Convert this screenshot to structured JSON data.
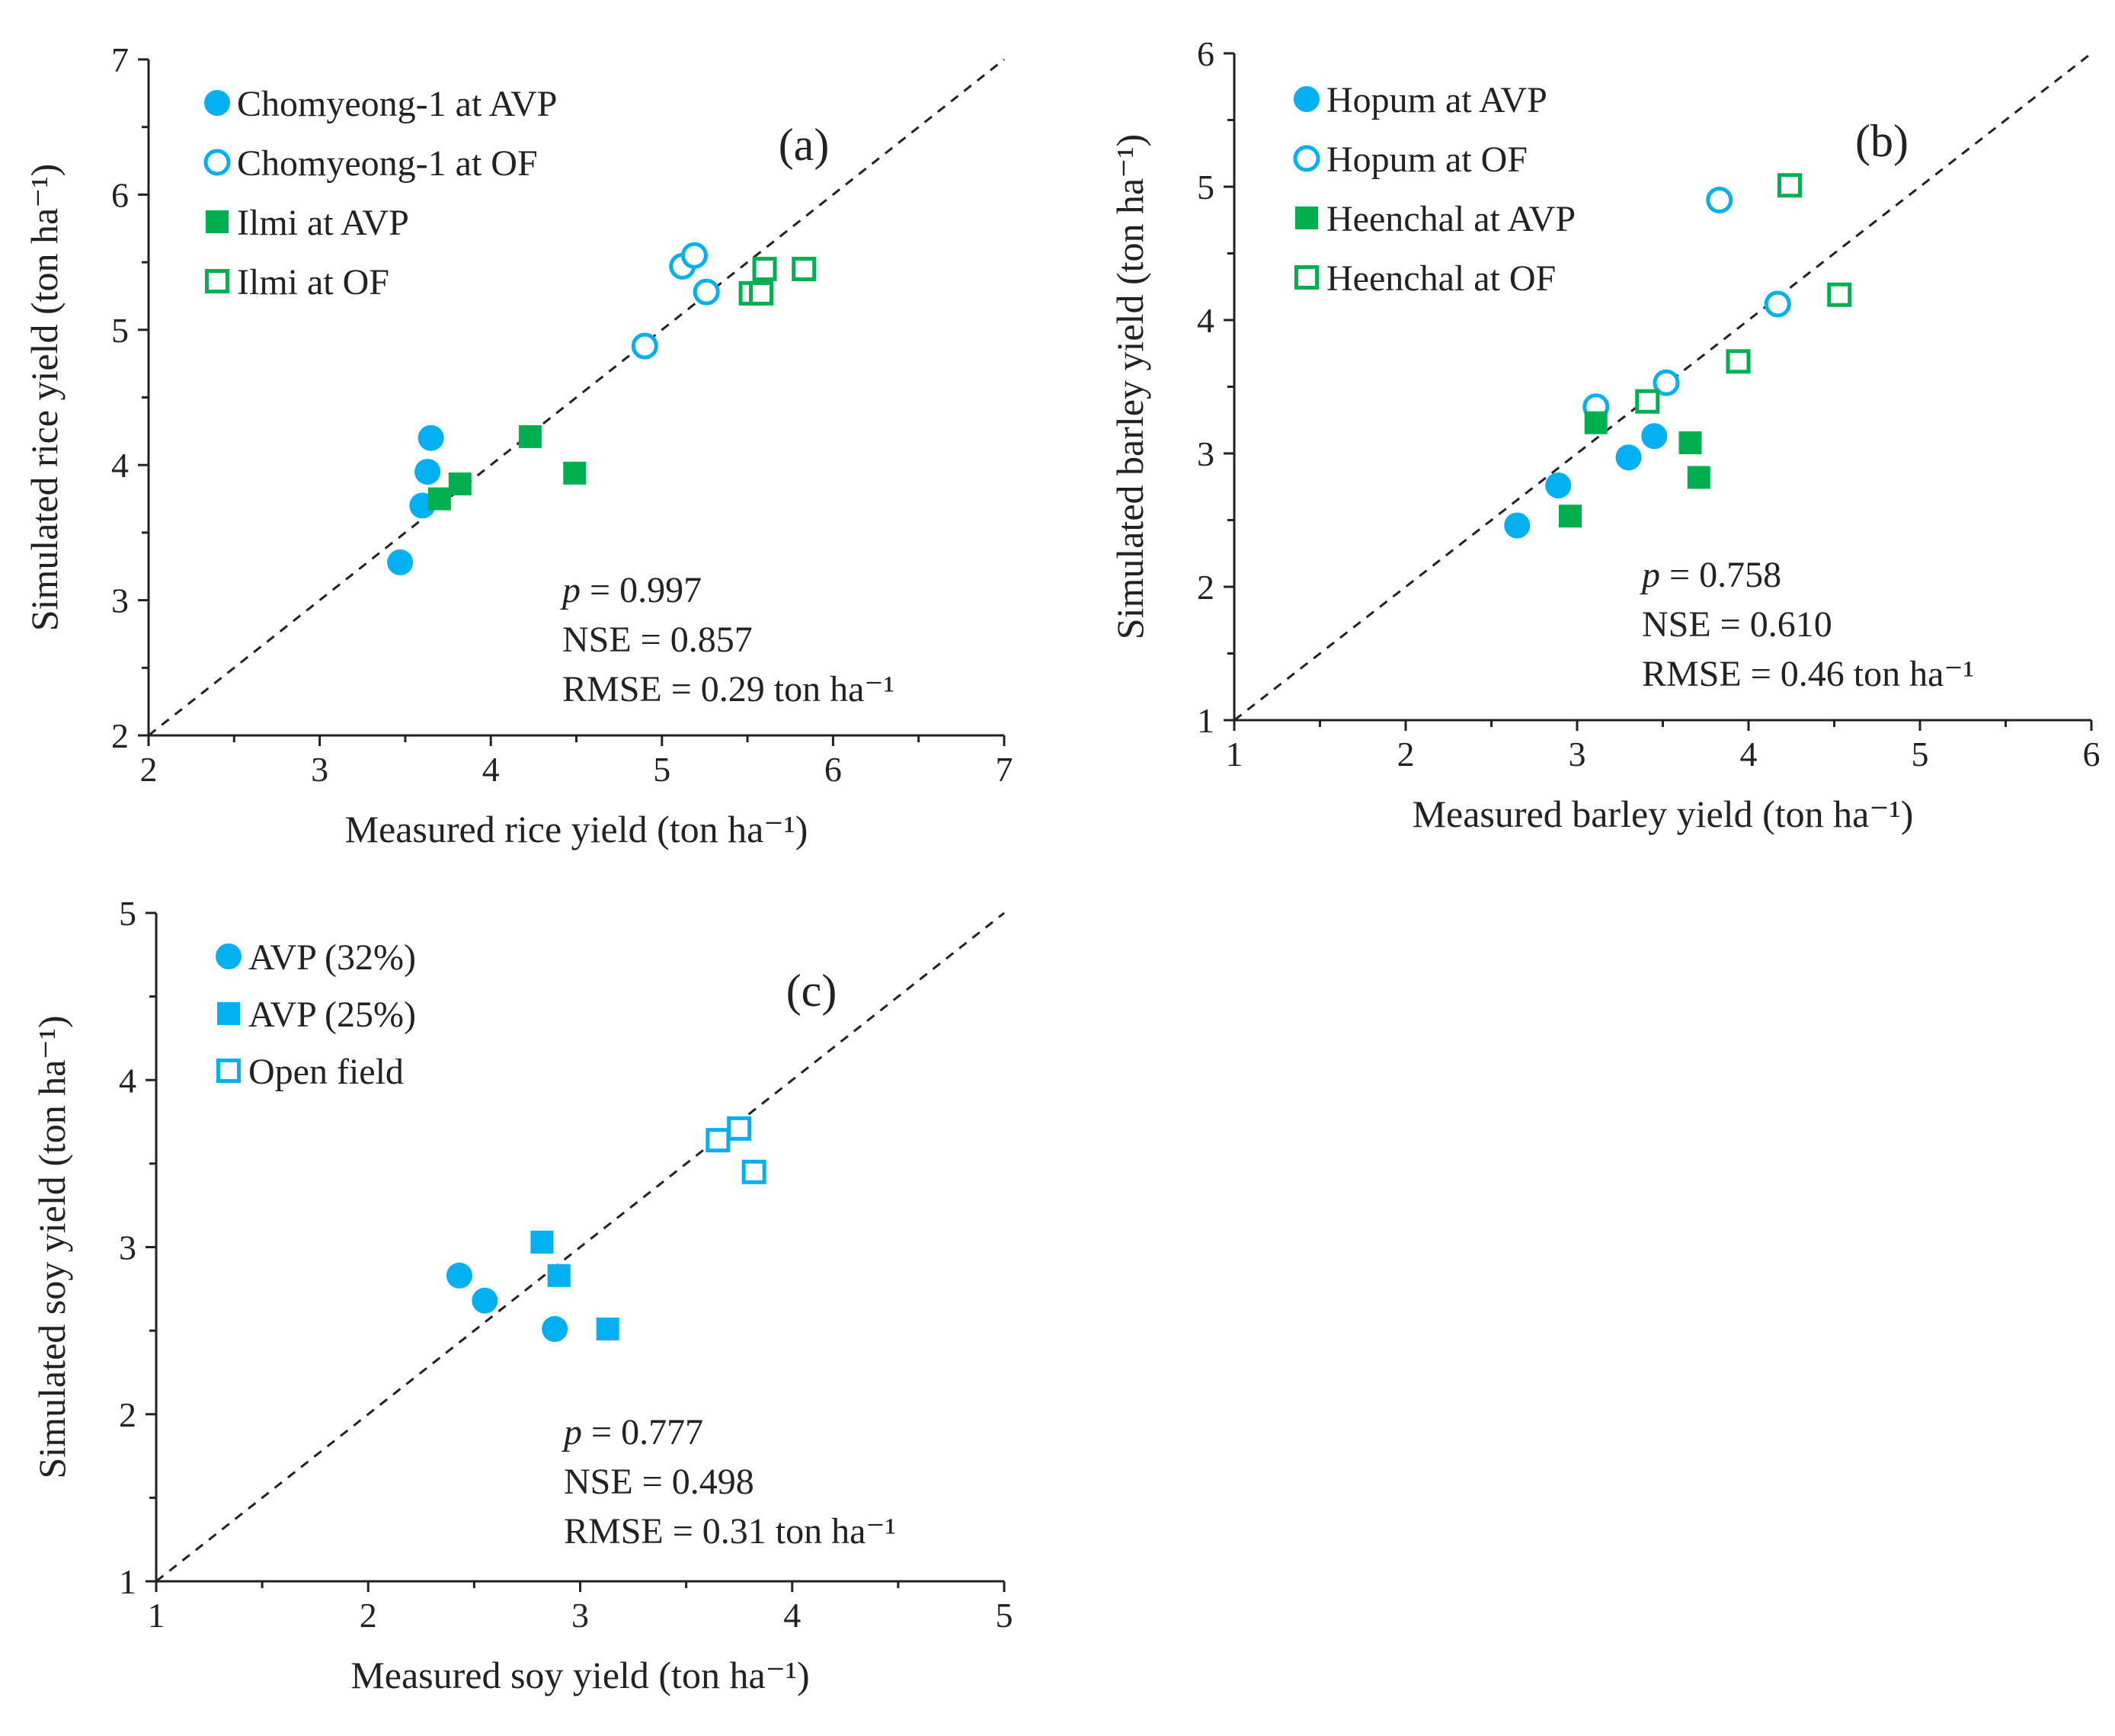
{
  "chart_data": [
    {
      "type": "scatter",
      "panel_label": "(a)",
      "xlabel": "Measured rice yield (ton ha⁻¹)",
      "ylabel": "Simulated rice yield (ton ha⁻¹)",
      "xlim": [
        2,
        7
      ],
      "ylim": [
        2,
        7
      ],
      "xticks": [
        "2",
        "3",
        "4",
        "5",
        "6",
        "7"
      ],
      "yticks": [
        "2",
        "3",
        "4",
        "5",
        "6",
        "7"
      ],
      "one_to_one_line": true,
      "legend_position": "top-left",
      "stats": {
        "p_symbol": "p",
        "p_text": " = 0.997",
        "nse": "NSE = 0.857",
        "rmse": "RMSE = 0.29  ton ha⁻¹"
      },
      "series": [
        {
          "name": "Chomyeong-1 at AVP",
          "marker": "circle",
          "filled": true,
          "color": "#00B0F0",
          "points": [
            [
              3.47,
              3.28
            ],
            [
              3.6,
              3.7
            ],
            [
              3.63,
              3.95
            ],
            [
              3.65,
              4.2
            ]
          ]
        },
        {
          "name": "Chomyeong-1 at OF",
          "marker": "circle",
          "filled": false,
          "color": "#00B0F0",
          "points": [
            [
              4.9,
              4.88
            ],
            [
              5.12,
              5.47
            ],
            [
              5.19,
              5.55
            ],
            [
              5.26,
              5.28
            ]
          ]
        },
        {
          "name": "Ilmi at AVP",
          "marker": "square",
          "filled": true,
          "color": "#00B050",
          "points": [
            [
              3.7,
              3.75
            ],
            [
              3.82,
              3.86
            ],
            [
              4.23,
              4.21
            ],
            [
              4.49,
              3.94
            ]
          ]
        },
        {
          "name": "Ilmi at OF",
          "marker": "square",
          "filled": false,
          "color": "#00B050",
          "points": [
            [
              5.52,
              5.27
            ],
            [
              5.58,
              5.27
            ],
            [
              5.6,
              5.45
            ],
            [
              5.83,
              5.45
            ]
          ]
        }
      ]
    },
    {
      "type": "scatter",
      "panel_label": "(b)",
      "xlabel": "Measured barley yield (ton ha⁻¹)",
      "ylabel": "Simulated barley yield (ton ha⁻¹)",
      "xlim": [
        1,
        6
      ],
      "ylim": [
        1,
        6
      ],
      "xticks": [
        "1",
        "2",
        "3",
        "4",
        "5",
        "6"
      ],
      "yticks": [
        "1",
        "2",
        "3",
        "4",
        "5",
        "6"
      ],
      "one_to_one_line": true,
      "legend_position": "top-left",
      "stats": {
        "p_symbol": "p",
        "p_text": " = 0.758",
        "nse": "NSE = 0.610",
        "rmse": "RMSE = 0.46  ton ha⁻¹"
      },
      "series": [
        {
          "name": "Hopum at AVP",
          "marker": "circle",
          "filled": true,
          "color": "#00B0F0",
          "points": [
            [
              2.65,
              2.46
            ],
            [
              2.89,
              2.76
            ],
            [
              3.3,
              2.97
            ],
            [
              3.45,
              3.13
            ]
          ]
        },
        {
          "name": "Hopum at OF",
          "marker": "circle",
          "filled": false,
          "color": "#00B0F0",
          "points": [
            [
              3.11,
              3.35
            ],
            [
              3.52,
              3.53
            ],
            [
              3.83,
              4.9
            ],
            [
              4.17,
              4.12
            ]
          ]
        },
        {
          "name": "Heenchal at AVP",
          "marker": "square",
          "filled": true,
          "color": "#00B050",
          "points": [
            [
              2.96,
              2.53
            ],
            [
              3.11,
              3.23
            ],
            [
              3.66,
              3.08
            ],
            [
              3.71,
              2.82
            ]
          ]
        },
        {
          "name": "Heenchal at OF",
          "marker": "square",
          "filled": false,
          "color": "#00B050",
          "points": [
            [
              3.41,
              3.39
            ],
            [
              3.94,
              3.69
            ],
            [
              4.24,
              5.01
            ],
            [
              4.53,
              4.19
            ]
          ]
        }
      ]
    },
    {
      "type": "scatter",
      "panel_label": "(c)",
      "xlabel": "Measured soy yield (ton ha⁻¹)",
      "ylabel": "Simulated soy yield (ton ha⁻¹)",
      "xlim": [
        1,
        5
      ],
      "ylim": [
        1,
        5
      ],
      "xticks": [
        "1",
        "2",
        "3",
        "4",
        "5"
      ],
      "yticks": [
        "1",
        "2",
        "3",
        "4",
        "5"
      ],
      "one_to_one_line": true,
      "legend_position": "top-left",
      "stats": {
        "p_symbol": "p",
        "p_text": " = 0.777",
        "nse": "NSE = 0.498",
        "rmse": "RMSE = 0.31  ton ha⁻¹"
      },
      "series": [
        {
          "name": "AVP (32%)",
          "marker": "circle",
          "filled": true,
          "color": "#00B0F0",
          "points": [
            [
              2.43,
              2.83
            ],
            [
              2.55,
              2.68
            ],
            [
              2.88,
              2.51
            ]
          ]
        },
        {
          "name": "AVP (25%)",
          "marker": "square",
          "filled": true,
          "color": "#00B0F0",
          "points": [
            [
              2.82,
              3.03
            ],
            [
              2.9,
              2.83
            ],
            [
              3.13,
              2.51
            ]
          ]
        },
        {
          "name": "Open field",
          "marker": "square",
          "filled": false,
          "color": "#00B0F0",
          "points": [
            [
              3.65,
              3.64
            ],
            [
              3.75,
              3.71
            ],
            [
              3.82,
              3.45
            ]
          ]
        }
      ]
    }
  ]
}
